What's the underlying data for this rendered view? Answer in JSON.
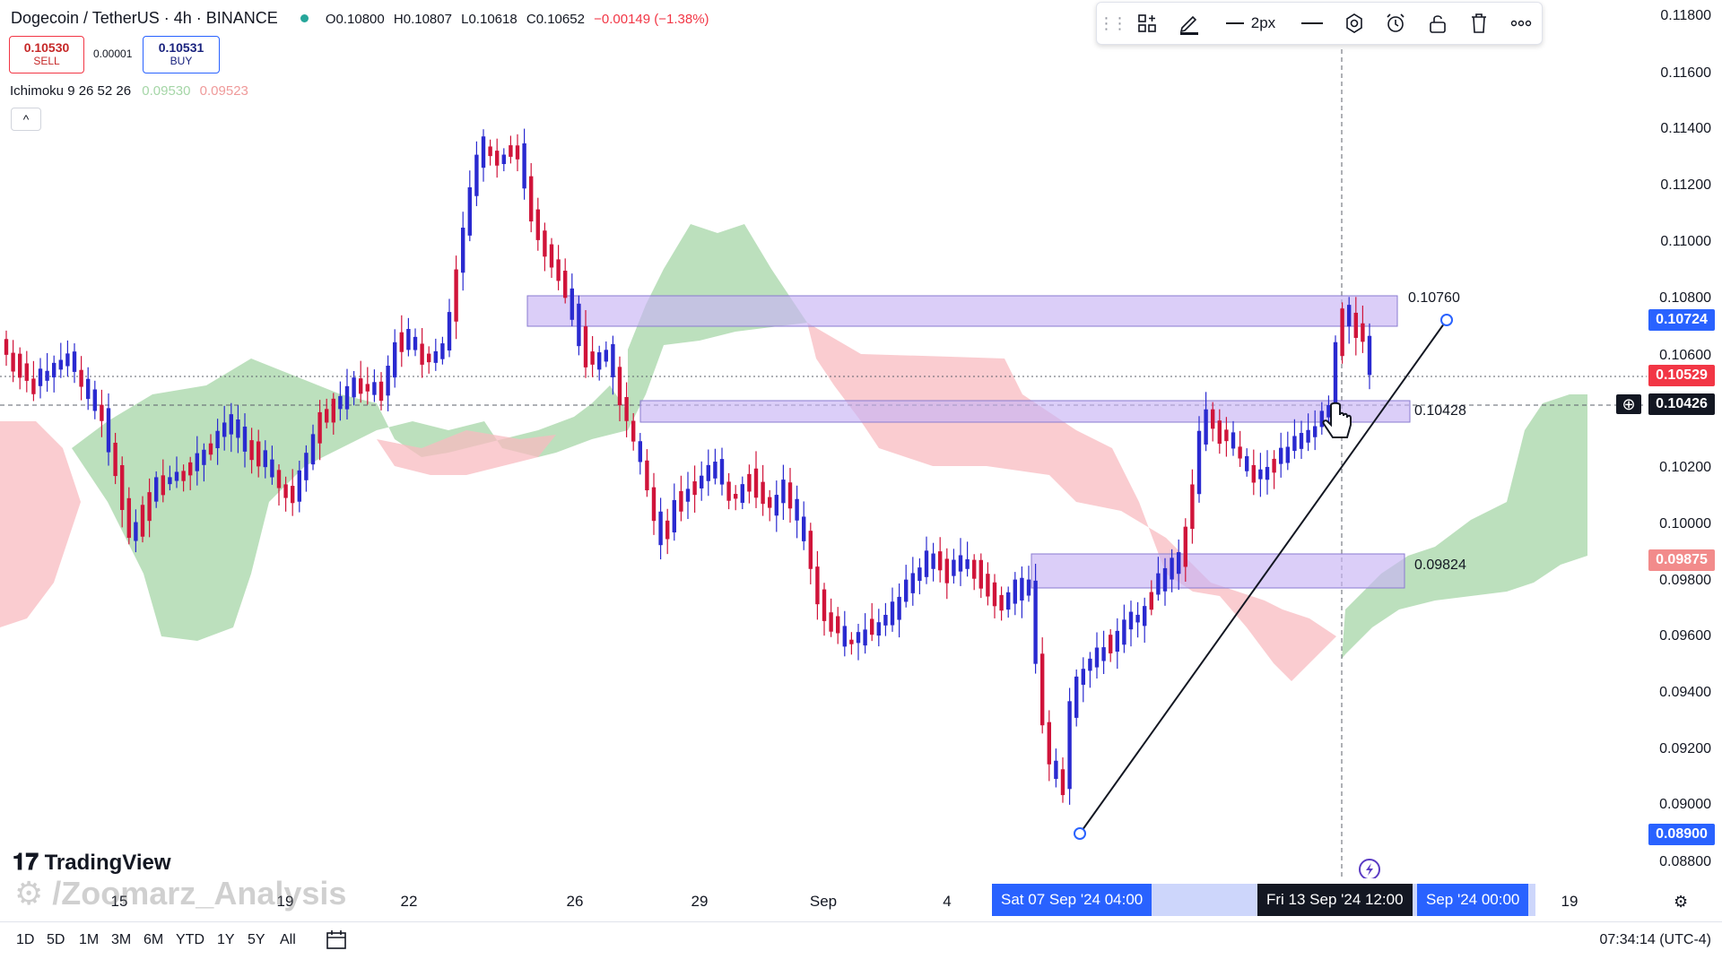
{
  "header": {
    "symbol": "Dogecoin / TetherUS · 4h · BINANCE",
    "open": "O0.10800",
    "high": "H0.10807",
    "low": "L0.10618",
    "close": "C0.10652",
    "change": "−0.00149 (−1.38%)"
  },
  "trade": {
    "sell_price": "0.10530",
    "sell_label": "SELL",
    "spread": "0.00001",
    "buy_price": "0.10531",
    "buy_label": "BUY"
  },
  "indicator": {
    "name": "Ichimoku 9 26 52 26",
    "value_a": "0.09530",
    "value_b": "0.09523",
    "collapse_glyph": "^"
  },
  "toolbar": {
    "width_label": "2px",
    "icons": [
      "grip-icon",
      "template-icon",
      "pencil-icon",
      "line-width-icon",
      "line-style-icon",
      "settings-icon",
      "alert-icon",
      "lock-icon",
      "trash-icon",
      "more-icon"
    ]
  },
  "price_axis": {
    "ticks": [
      "0.11800",
      "0.11600",
      "0.11400",
      "0.11200",
      "0.11000",
      "0.10800",
      "0.10600",
      "0.10200",
      "0.10000",
      "0.09800",
      "0.09600",
      "0.09400",
      "0.09200",
      "0.09000",
      "0.08800"
    ],
    "labels": {
      "zone_top": "0.10724",
      "last_price": "0.10529",
      "crosshair": "0.10426",
      "green_level": "0.09875",
      "low_level": "0.08900"
    }
  },
  "zones": {
    "upper": "0.10760",
    "middle": "0.10428",
    "lower": "0.09824"
  },
  "time_axis": {
    "ticks": [
      "15",
      "19",
      "22",
      "26",
      "29",
      "Sep",
      "4",
      "19"
    ],
    "range_start": "Sat 07 Sep '24   04:00",
    "crosshair": "Fri 13 Sep '24   12:00",
    "range_end": "Sep '24   00:00"
  },
  "bottom": {
    "ranges": [
      "1D",
      "5D",
      "1M",
      "3M",
      "6M",
      "YTD",
      "1Y",
      "5Y",
      "All"
    ],
    "clock": "07:34:14 (UTC-4)"
  },
  "branding": {
    "logo": "TradingView",
    "watermark": "/Zoomarz_Analysis"
  },
  "colors": {
    "up": "#2a2ad0",
    "down": "#d0143a",
    "cloud_green": "#a5d6a7",
    "cloud_red": "#f8bbc0",
    "zone": "#d1c4f5",
    "axis_blue": "#2962ff",
    "axis_red": "#f23645",
    "green_label": "#f28b8b"
  }
}
